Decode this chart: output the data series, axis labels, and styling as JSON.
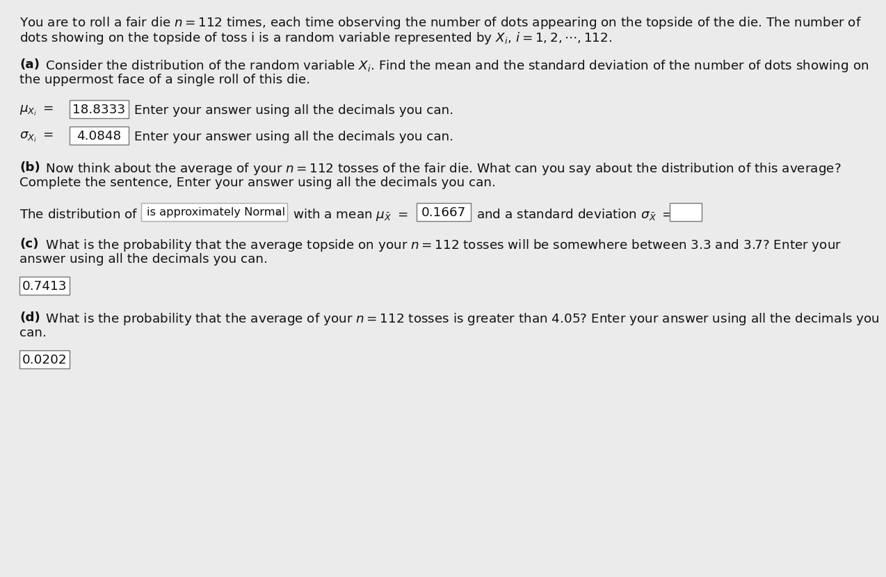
{
  "bg_color": "#ebebeb",
  "text_color": "#111111",
  "fs": 13.2,
  "intro_line1": "You are to roll a fair die $n = 112$ times, each time observing the number of dots appearing on the topside of the die. The number of",
  "intro_line2": "dots showing on the topside of toss i is a random variable represented by $X_i,\\, i = 1, 2, \\cdots, 112$.",
  "part_a_bold": "(a)",
  "part_a_text": " Consider the distribution of the random variable $X_i$. Find the mean and the standard deviation of the number of dots showing on",
  "part_a_line2": "the uppermost face of a single roll of this die.",
  "mu_value": "18.8333",
  "sigma_value": "4.0848",
  "answer_suffix": "Enter your answer using all the decimals you can.",
  "part_b_bold": "(b)",
  "part_b_text": " Now think about the average of your $n = 112$ tosses of the fair die. What can you say about the distribution of this average?",
  "part_b_line2": "Complete the sentence, Enter your answer using all the decimals you can.",
  "dist_prefix": "The distribution of $\\bar{X}$",
  "dist_dropdown": "is approximately Normal",
  "dist_mean_value": "0.1667",
  "part_c_bold": "(c)",
  "part_c_text": " What is the probability that the average topside on your $n = 112$ tosses will be somewhere between 3.3 and 3.7? Enter your",
  "part_c_line2": "answer using all the decimals you can.",
  "part_c_value": "0.7413",
  "part_d_bold": "(d)",
  "part_d_text": " What is the probability that the average of your $n = 112$ tosses is greater than 4.05? Enter your answer using all the decimals you",
  "part_d_line2": "can.",
  "part_d_value": "0.0202",
  "box_edge_color": "#777777",
  "dropdown_edge_color": "#aaaaaa",
  "white": "#ffffff"
}
